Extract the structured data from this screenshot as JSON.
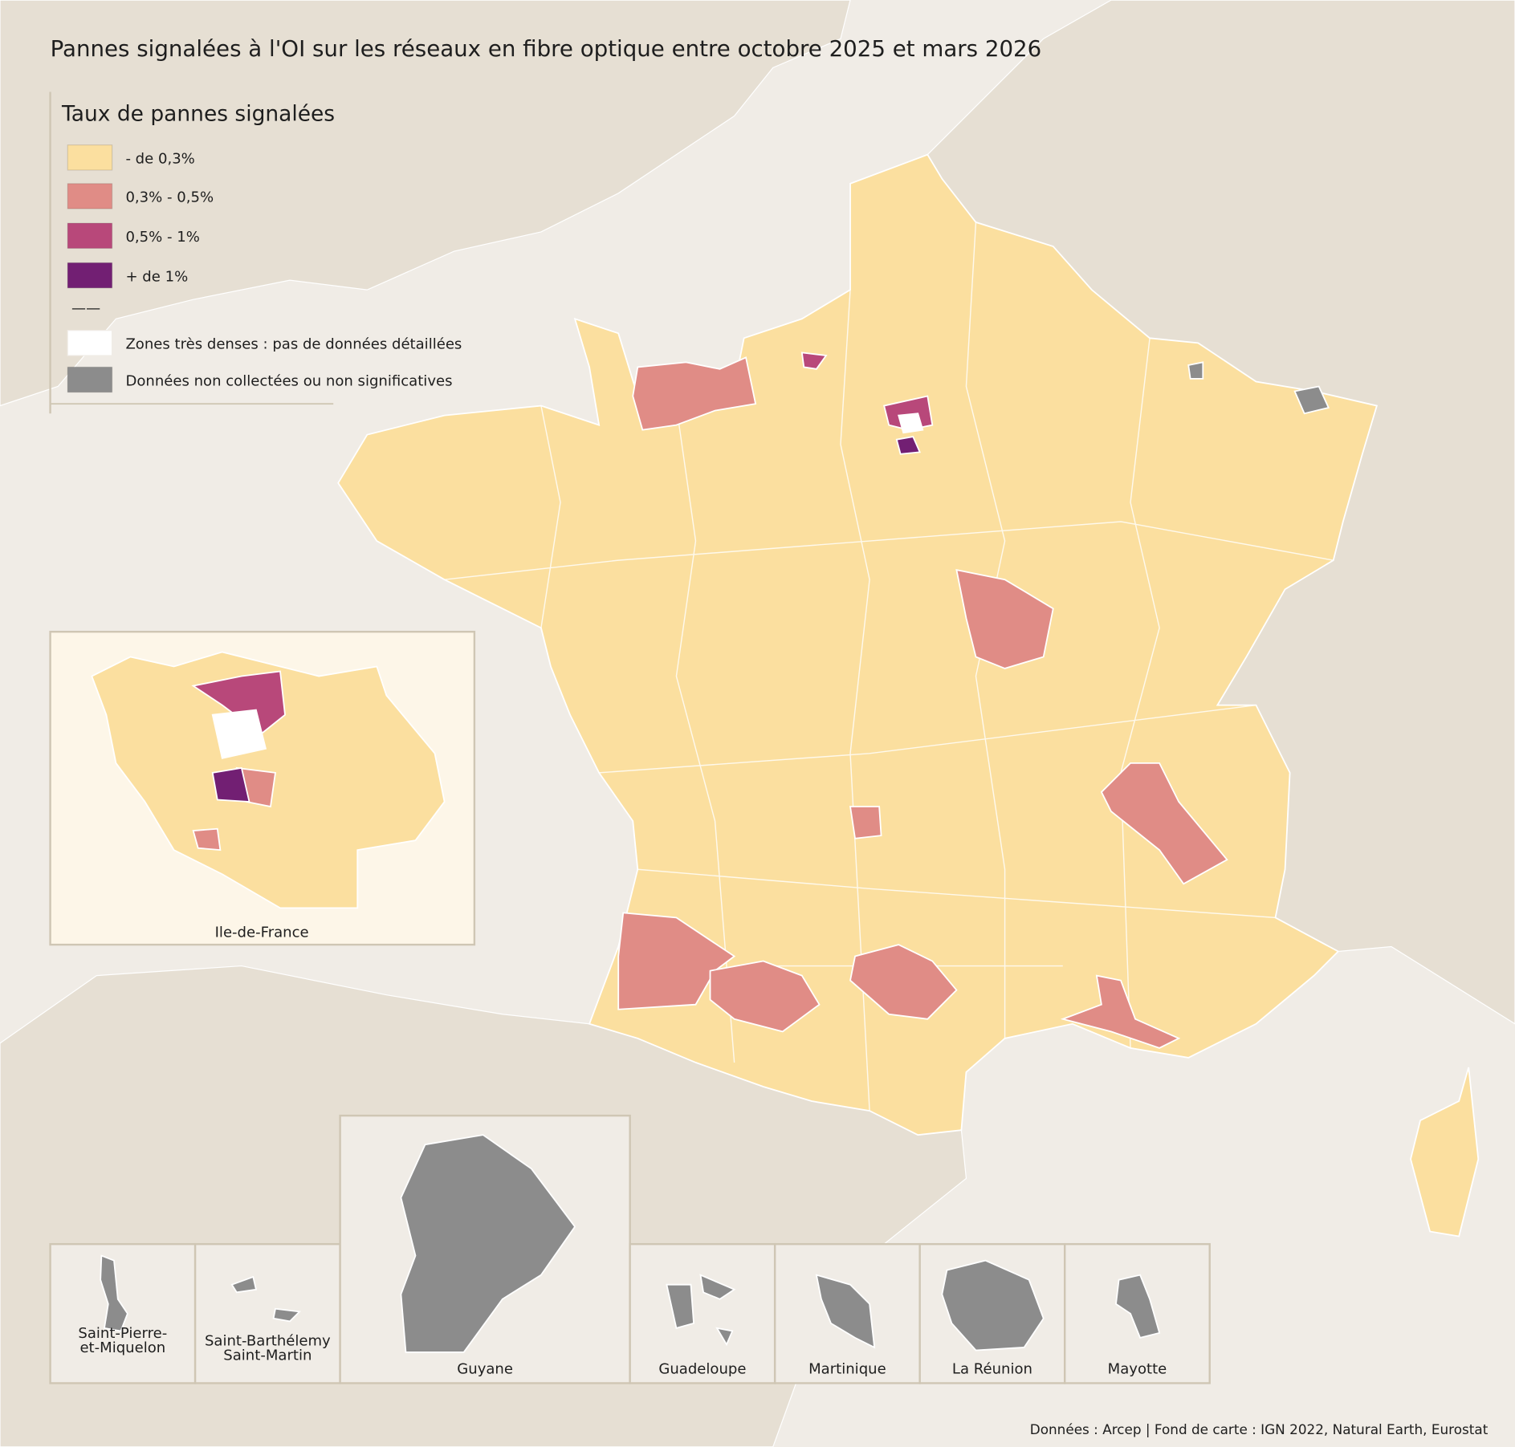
{
  "title": "Pannes signalées à l'OI sur les réseaux en fibre optique entre octobre 2025 et mars 2026",
  "legend": {
    "title": "Taux de pannes signalées",
    "items": [
      {
        "label": "- de 0,3%",
        "color": "#fbdf9f"
      },
      {
        "label": "0,3% - 0,5%",
        "color": "#e08c86"
      },
      {
        "label": "0,5% - 1%",
        "color": "#b8487a"
      },
      {
        "label": "+ de 1%",
        "color": "#721f73"
      },
      {
        "label": "Zones très denses : pas de données détaillées",
        "color": "#ffffff"
      },
      {
        "label": "Données non collectées ou non significatives",
        "color": "#8c8c8c"
      }
    ],
    "separator": "——"
  },
  "insets": [
    {
      "lines": [
        "Ile-de-France"
      ]
    },
    {
      "lines": [
        "Saint-Pierre-",
        "et-Miquelon"
      ]
    },
    {
      "lines": [
        "Saint-Barthélemy",
        "Saint-Martin"
      ]
    },
    {
      "lines": [
        "Guyane"
      ]
    },
    {
      "lines": [
        "Guadeloupe"
      ]
    },
    {
      "lines": [
        "Martinique"
      ]
    },
    {
      "lines": [
        "La Réunion"
      ]
    },
    {
      "lines": [
        "Mayotte"
      ]
    }
  ],
  "source": "Données : Arcep | Fond de carte : IGN 2022, Natural Earth, Eurostat"
}
